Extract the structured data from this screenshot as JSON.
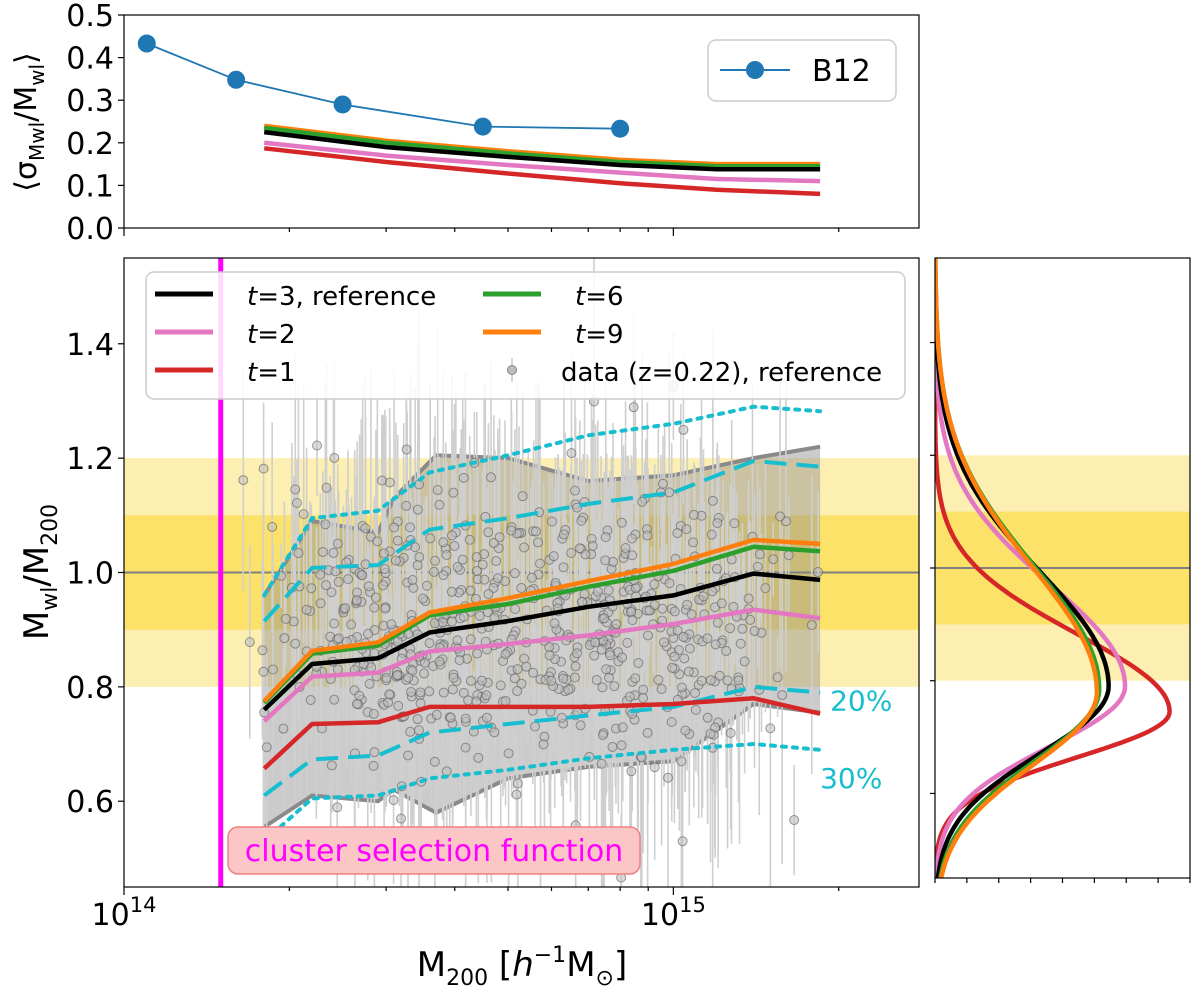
{
  "chart_data": [
    {
      "panel": "top",
      "type": "line",
      "xscale": "log",
      "xlim": [
        100000000000000.0,
        2800000000000000.0
      ],
      "ylim": [
        0.0,
        0.5
      ],
      "yticks": [
        "0.0",
        "0.1",
        "0.2",
        "0.3",
        "0.4",
        "0.5"
      ],
      "ylabel": "⟨σMwl/Mwl⟩",
      "legend": {
        "label": "B12",
        "placement": "top-right"
      },
      "series": [
        {
          "name": "B12",
          "color": "#1f77b4",
          "marker": "circle",
          "x": [
            110000000000000.0,
            160000000000000.0,
            250000000000000.0,
            450000000000000.0,
            800000000000000.0
          ],
          "y": [
            0.433,
            0.348,
            0.29,
            0.238,
            0.233
          ]
        },
        {
          "name": "t=9",
          "color": "#ff7f0e",
          "x": [
            180000000000000.0,
            300000000000000.0,
            500000000000000.0,
            800000000000000.0,
            1200000000000000.0,
            1850000000000000.0
          ],
          "y": [
            0.24,
            0.205,
            0.18,
            0.16,
            0.15,
            0.15
          ]
        },
        {
          "name": "t=6",
          "color": "#2ca02c",
          "x": [
            180000000000000.0,
            300000000000000.0,
            500000000000000.0,
            800000000000000.0,
            1200000000000000.0,
            1850000000000000.0
          ],
          "y": [
            0.235,
            0.2,
            0.175,
            0.155,
            0.145,
            0.145
          ]
        },
        {
          "name": "t=3",
          "color": "#000000",
          "x": [
            180000000000000.0,
            300000000000000.0,
            500000000000000.0,
            800000000000000.0,
            1200000000000000.0,
            1850000000000000.0
          ],
          "y": [
            0.225,
            0.19,
            0.167,
            0.148,
            0.138,
            0.138
          ]
        },
        {
          "name": "t=2",
          "color": "#e377c2",
          "x": [
            180000000000000.0,
            300000000000000.0,
            500000000000000.0,
            800000000000000.0,
            1200000000000000.0,
            1850000000000000.0
          ],
          "y": [
            0.2,
            0.17,
            0.148,
            0.13,
            0.115,
            0.11
          ]
        },
        {
          "name": "t=1",
          "color": "#d62728",
          "x": [
            180000000000000.0,
            300000000000000.0,
            500000000000000.0,
            800000000000000.0,
            1200000000000000.0,
            1850000000000000.0
          ],
          "y": [
            0.187,
            0.155,
            0.128,
            0.105,
            0.09,
            0.08
          ]
        }
      ]
    },
    {
      "panel": "main",
      "type": "line",
      "xscale": "log",
      "xlim": [
        100000000000000.0,
        2800000000000000.0
      ],
      "ylim": [
        0.45,
        1.55
      ],
      "xticks": [
        {
          "base": "10",
          "exp": "14",
          "value": 100000000000000.0
        },
        {
          "base": "10",
          "exp": "15",
          "value": 1000000000000000.0
        }
      ],
      "yticks": [
        "0.6",
        "0.8",
        "1.0",
        "1.2",
        "1.4"
      ],
      "xlabel": "M200 [h−1M⊙]",
      "ylabel": "Mwl/M200",
      "reference_line": 1.0,
      "bands": [
        {
          "y": [
            0.8,
            1.2
          ],
          "color": "#fdefb2"
        },
        {
          "y": [
            0.9,
            1.1
          ],
          "color": "#fde26a"
        }
      ],
      "selection_line": {
        "x": 150000000000000.0,
        "color": "#ff00ff",
        "label": "cluster selection function"
      },
      "x": [
        180000000000000.0,
        220000000000000.0,
        290000000000000.0,
        360000000000000.0,
        500000000000000.0,
        700000000000000.0,
        1000000000000000.0,
        1400000000000000.0,
        1850000000000000.0
      ],
      "series": [
        {
          "name": "t=3, reference",
          "color": "#000000",
          "y": [
            0.76,
            0.84,
            0.85,
            0.895,
            0.915,
            0.94,
            0.96,
            0.998,
            0.987
          ]
        },
        {
          "name": "t=2",
          "color": "#e377c2",
          "y": [
            0.74,
            0.818,
            0.825,
            0.862,
            0.875,
            0.89,
            0.91,
            0.935,
            0.92
          ]
        },
        {
          "name": "t=1",
          "color": "#d62728",
          "y": [
            0.657,
            0.735,
            0.738,
            0.765,
            0.765,
            0.765,
            0.77,
            0.78,
            0.753
          ]
        },
        {
          "name": "t=6",
          "color": "#2ca02c",
          "y": [
            0.772,
            0.858,
            0.872,
            0.925,
            0.945,
            0.975,
            1.003,
            1.045,
            1.037
          ]
        },
        {
          "name": "t=9",
          "color": "#ff7f0e",
          "y": [
            0.775,
            0.863,
            0.878,
            0.93,
            0.955,
            0.985,
            1.015,
            1.057,
            1.05
          ]
        }
      ],
      "dashed_20pct": {
        "label": "20%",
        "color": "#17becf",
        "upper": [
          0.915,
          1.008,
          1.013,
          1.075,
          1.095,
          1.12,
          1.14,
          1.195,
          1.185
        ],
        "lower": [
          0.61,
          0.673,
          0.68,
          0.72,
          0.735,
          0.75,
          0.765,
          0.8,
          0.79
        ]
      },
      "dotted_30pct": {
        "label": "30%",
        "color": "#17becf",
        "upper": [
          0.96,
          1.095,
          1.108,
          1.175,
          1.205,
          1.24,
          1.26,
          1.29,
          1.282
        ],
        "lower": [
          0.53,
          0.605,
          0.61,
          0.64,
          0.655,
          0.675,
          0.69,
          0.7,
          0.69
        ]
      },
      "scatter_band": {
        "x": [
          180000000000000.0,
          220000000000000.0,
          290000000000000.0,
          310000000000000.0,
          370000000000000.0,
          500000000000000.0,
          700000000000000.0,
          1000000000000000.0,
          1400000000000000.0,
          1850000000000000.0
        ],
        "upper": [
          0.96,
          1.09,
          1.07,
          1.13,
          1.205,
          1.2,
          1.16,
          1.17,
          1.2,
          1.22
        ],
        "lower": [
          0.555,
          0.61,
          0.6,
          0.62,
          0.58,
          0.64,
          0.66,
          0.67,
          0.77,
          0.755
        ]
      },
      "legend": {
        "placement": "top-left",
        "entries": [
          {
            "label": "t=3, reference",
            "color": "#000000"
          },
          {
            "label": "t=2",
            "color": "#e377c2"
          },
          {
            "label": "t=1",
            "color": "#d62728"
          },
          {
            "label": "t=6",
            "color": "#2ca02c"
          },
          {
            "label": "t=9",
            "color": "#ff7f0e"
          },
          {
            "label": "data (z=0.22), reference",
            "color": "#bbbbbb"
          }
        ]
      },
      "data_points": {
        "label": "data (z=0.22), reference",
        "count": 700,
        "mass_range": [
          160000000000000.0,
          1900000000000000.0
        ],
        "median_ratio": 0.9
      }
    },
    {
      "panel": "side",
      "type": "line",
      "description": "distribution of Mwl/M200 per t (shared y-axis with main panel)",
      "ylim": [
        0.45,
        1.55
      ],
      "series": [
        {
          "name": "t=1",
          "color": "#d62728",
          "mu": 0.745,
          "sigma": 0.095,
          "amp": 1.0
        },
        {
          "name": "t=2",
          "color": "#e377c2",
          "mu": 0.79,
          "sigma": 0.125,
          "amp": 0.81
        },
        {
          "name": "t=3",
          "color": "#000000",
          "mu": 0.79,
          "sigma": 0.14,
          "amp": 0.74
        },
        {
          "name": "t=6",
          "color": "#2ca02c",
          "mu": 0.785,
          "sigma": 0.15,
          "amp": 0.7
        },
        {
          "name": "t=9",
          "color": "#ff7f0e",
          "mu": 0.78,
          "sigma": 0.152,
          "amp": 0.69
        }
      ]
    }
  ]
}
